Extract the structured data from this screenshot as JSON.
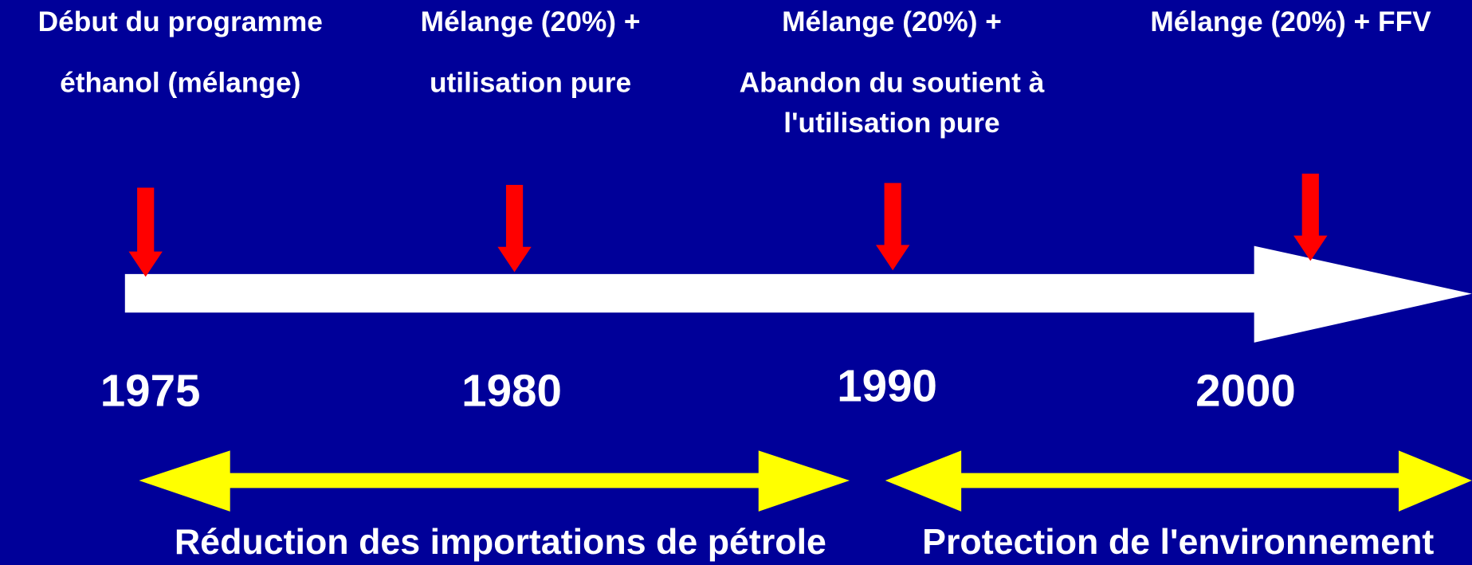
{
  "events": [
    {
      "lines": [
        "Début du programme",
        "éthanol (mélange)"
      ]
    },
    {
      "lines": [
        "Mélange (20%) +",
        "utilisation pure"
      ]
    },
    {
      "lines": [
        "Mélange (20%)  +",
        "Abandon du soutient à",
        "l'utilisation pure"
      ]
    },
    {
      "lines": [
        "Mélange (20%) + FFV"
      ]
    }
  ],
  "years": [
    "1975",
    "1980",
    "1990",
    "2000"
  ],
  "periods": [
    "Réduction des importations de pétrole",
    "Protection de l'environnement"
  ]
}
